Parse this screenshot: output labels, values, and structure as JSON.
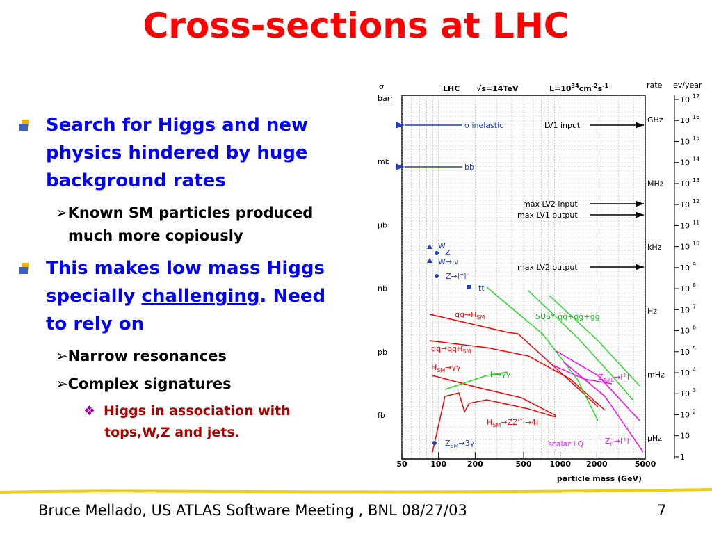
{
  "title": "Cross-sections at LHC",
  "bullets": [
    {
      "lines": [
        "Search for Higgs and new",
        "physics hindered by huge",
        "background rates"
      ],
      "sub": [
        {
          "lines": [
            "Known SM particles produced",
            "much more copiously"
          ]
        }
      ]
    },
    {
      "lines": [
        "This makes low mass Higgs",
        "to rely on"
      ],
      "line2": [
        "specially ",
        "challenging",
        ". Need"
      ],
      "sub": [
        {
          "lines": [
            "Narrow resonances"
          ]
        },
        {
          "lines": [
            "Complex signatures"
          ],
          "sub": [
            {
              "lines": [
                "Higgs in association with",
                "tops,W,Z and jets."
              ]
            }
          ]
        }
      ]
    }
  ],
  "figure": {
    "header": {
      "sigma": "σ",
      "lhc": "LHC",
      "energy": "√s=14TeV",
      "lumi": [
        "L=10",
        "34",
        "cm",
        "-2",
        "s",
        "-1"
      ],
      "rate": "rate",
      "evyear": "ev/year"
    },
    "left_units": [
      "barn",
      "mb",
      "μb",
      "nb",
      "pb",
      "fb"
    ],
    "rate_units": [
      "GHz",
      "MHz",
      "kHz",
      "Hz",
      "mHz",
      "μHz"
    ],
    "ev_ticks": [
      [
        "10",
        "17"
      ],
      [
        "10",
        "16"
      ],
      [
        "10",
        "15"
      ],
      [
        "10",
        "14"
      ],
      [
        "10",
        "13"
      ],
      [
        "10",
        "12"
      ],
      [
        "10",
        "11"
      ],
      [
        "10",
        "10"
      ],
      [
        "10",
        "9"
      ],
      [
        "10",
        "8"
      ],
      [
        "10",
        "7"
      ],
      [
        "10",
        "6"
      ],
      [
        "10",
        "5"
      ],
      [
        "10",
        "4"
      ],
      [
        "10",
        "3"
      ],
      [
        "10",
        "2"
      ],
      [
        "10",
        ""
      ],
      [
        "1",
        ""
      ]
    ],
    "xlim": [
      50,
      5000
    ],
    "xticks": [
      50,
      100,
      200,
      500,
      1000,
      2000,
      5000
    ],
    "xscale": "log",
    "xlabel": "particle mass (GeV)",
    "labels": {
      "inelastic": "σ inelastic",
      "bb": "bb̄",
      "lv1in": "LV1 input",
      "lv2in": "max LV2 input",
      "lv1out": "max LV1 output",
      "lv2out": "max LV2 output",
      "w": "W",
      "z": "Z",
      "wlnu": "W→lν",
      "zll": [
        "Z→l",
        "+",
        "l",
        "-"
      ],
      "tt": "tt̄",
      "ggh": [
        "gg→H",
        "SM"
      ],
      "qqh": [
        "qq→qqH",
        "SM"
      ],
      "hgg": [
        "H",
        "SM",
        "→γγ"
      ],
      "susy": "SUSY q̃q̃+q̃g̃+g̃g̃",
      "hgg2": "h→γγ",
      "h4l": [
        "H",
        "SM",
        "→ZZ",
        "(*)",
        "→4l"
      ],
      "zarl": [
        "Z",
        "ARL",
        "→l",
        "+",
        "l",
        "-"
      ],
      "lq": "scalar LQ",
      "zeta": [
        "Z",
        "η",
        "→l",
        "+",
        "l",
        "-"
      ],
      "z3g": [
        "Z",
        "SM",
        "→3γ"
      ]
    }
  },
  "footer": {
    "text": "Bruce Mellado, US ATLAS Software Meeting , BNL 08/27/03",
    "page": "7"
  }
}
